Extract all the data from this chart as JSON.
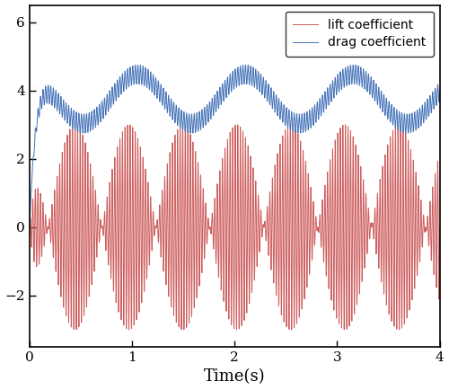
{
  "t_start": 0,
  "t_end": 4,
  "n_points": 12000,
  "lift_slow_amp": 3.0,
  "lift_slow_freq": 0.95,
  "lift_slow_phase": 0.5,
  "lift_fast_freq": 40.0,
  "drag_mean": 3.75,
  "drag_slow_amp": 0.72,
  "drag_slow_freq": 0.95,
  "drag_slow_phase": 0.0,
  "drag_fast_freq": 40.0,
  "drag_fast_amp": 0.28,
  "drag_fast_phase": 0.0,
  "rise_time_lift": 0.07,
  "rise_time_drag": 0.06,
  "xlabel": "Time(s)",
  "xlim": [
    0,
    4
  ],
  "ylim": [
    -3.5,
    6.5
  ],
  "xticks": [
    0,
    1,
    2,
    3,
    4
  ],
  "yticks": [
    -2,
    0,
    2,
    4,
    6
  ],
  "lift_color": "#cd5c5c",
  "drag_color": "#4472b8",
  "legend_lift": "lift coefficient",
  "legend_drag": "drag coefficient",
  "linewidth": 0.7,
  "figsize": [
    5.0,
    4.34
  ],
  "dpi": 100
}
